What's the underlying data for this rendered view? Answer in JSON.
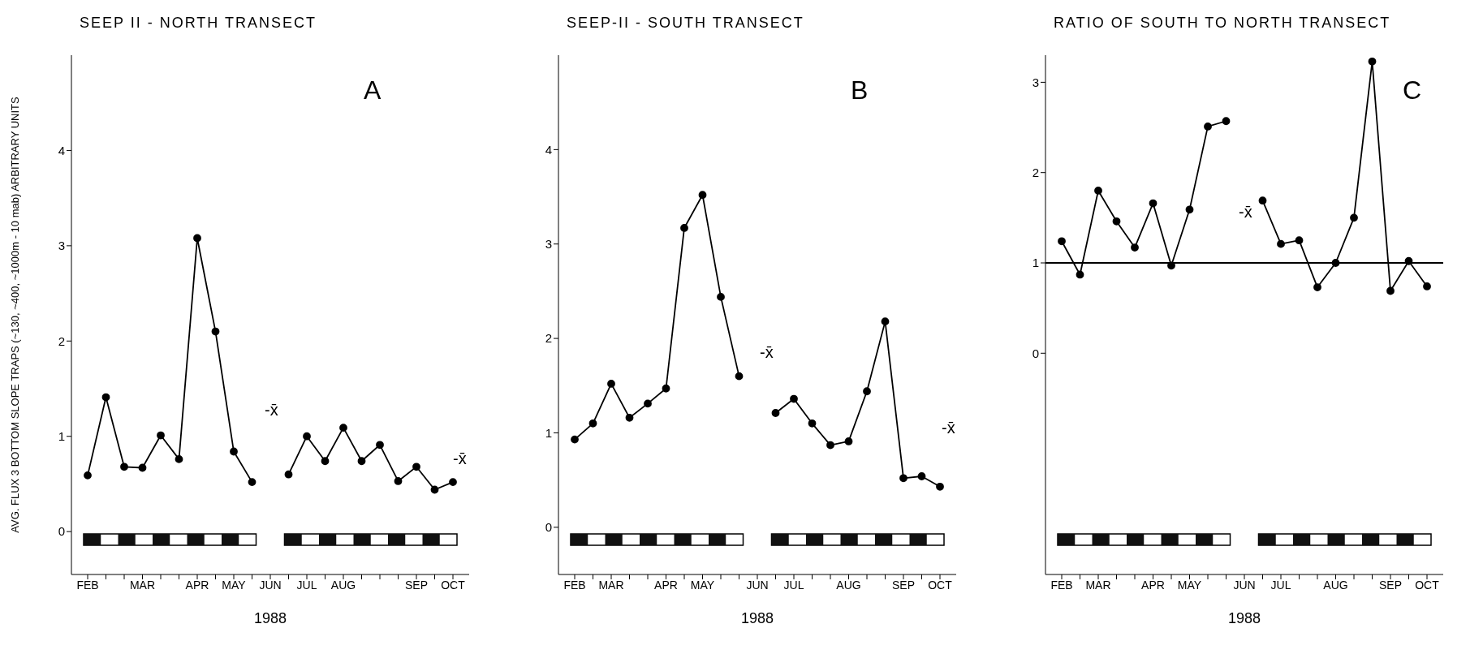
{
  "chart_data": [
    {
      "type": "line",
      "title": "SEEP II - NORTH TRANSECT",
      "xlabel": "1988",
      "ylabel": "AVG. FLUX 3 BOTTOM SLOPE TRAPS (~130, ~400, ~1000m - 10 mab) ARBITRARY UNITS",
      "marker": "circle",
      "categories": [
        "FEB",
        null,
        null,
        "MAR",
        null,
        null,
        "APR",
        null,
        "MAY",
        null,
        "JUN",
        null,
        "JUL",
        null,
        "AUG",
        null,
        null,
        null,
        "SEP",
        null,
        "OCT"
      ],
      "ylim": [
        -0.45,
        5
      ],
      "yticks": [
        0,
        1,
        2,
        3,
        4
      ],
      "series": [
        {
          "color": "#000000",
          "values": [
            0.59,
            1.41,
            0.68,
            0.67,
            1.01,
            0.76,
            3.08,
            2.1,
            0.84,
            0.52,
            null,
            0.6,
            1.0,
            0.74,
            1.09,
            0.74,
            0.91,
            0.53,
            0.68,
            0.44,
            0.52
          ]
        }
      ],
      "annotations": [
        "A",
        "-x̄",
        "-x̄"
      ]
    },
    {
      "type": "line",
      "title": "SEEP-II - SOUTH TRANSECT",
      "xlabel": "1988",
      "marker": "circle",
      "categories": [
        "FEB",
        null,
        "MAR",
        null,
        null,
        "APR",
        null,
        "MAY",
        null,
        null,
        "JUN",
        null,
        "JUL",
        null,
        null,
        "AUG",
        null,
        null,
        "SEP",
        null,
        "OCT"
      ],
      "ylim": [
        -0.5,
        5
      ],
      "yticks": [
        0,
        1,
        2,
        3,
        4
      ],
      "series": [
        {
          "color": "#000000",
          "values": [
            0.93,
            1.1,
            1.52,
            1.16,
            1.31,
            1.47,
            3.17,
            3.52,
            2.44,
            1.6,
            null,
            1.21,
            1.36,
            1.1,
            0.87,
            0.91,
            1.44,
            2.18,
            0.52,
            0.54,
            0.43
          ]
        }
      ],
      "annotations": [
        "B",
        "-x̄",
        "-x̄"
      ]
    },
    {
      "type": "line",
      "title": "RATIO OF SOUTH TO NORTH TRANSECT",
      "xlabel": "1988",
      "marker": "circle",
      "categories": [
        "FEB",
        null,
        "MAR",
        null,
        null,
        "APR",
        null,
        "MAY",
        null,
        null,
        "JUN",
        null,
        "JUL",
        null,
        null,
        "AUG",
        null,
        null,
        "SEP",
        null,
        "OCT"
      ],
      "ylim": [
        -2.45,
        3.3
      ],
      "yticks": [
        0,
        1,
        2,
        3
      ],
      "series": [
        {
          "color": "#000000",
          "values": [
            1.24,
            0.87,
            1.8,
            1.46,
            1.17,
            1.66,
            0.97,
            1.59,
            2.51,
            2.57,
            null,
            1.69,
            1.21,
            1.25,
            0.73,
            1.0,
            1.5,
            3.23,
            0.69,
            1.02,
            0.74
          ]
        }
      ],
      "ref_lines": [
        {
          "axis": "y",
          "value": 1,
          "color": "#000000"
        }
      ],
      "annotations": [
        "C",
        "-x̄"
      ]
    }
  ]
}
